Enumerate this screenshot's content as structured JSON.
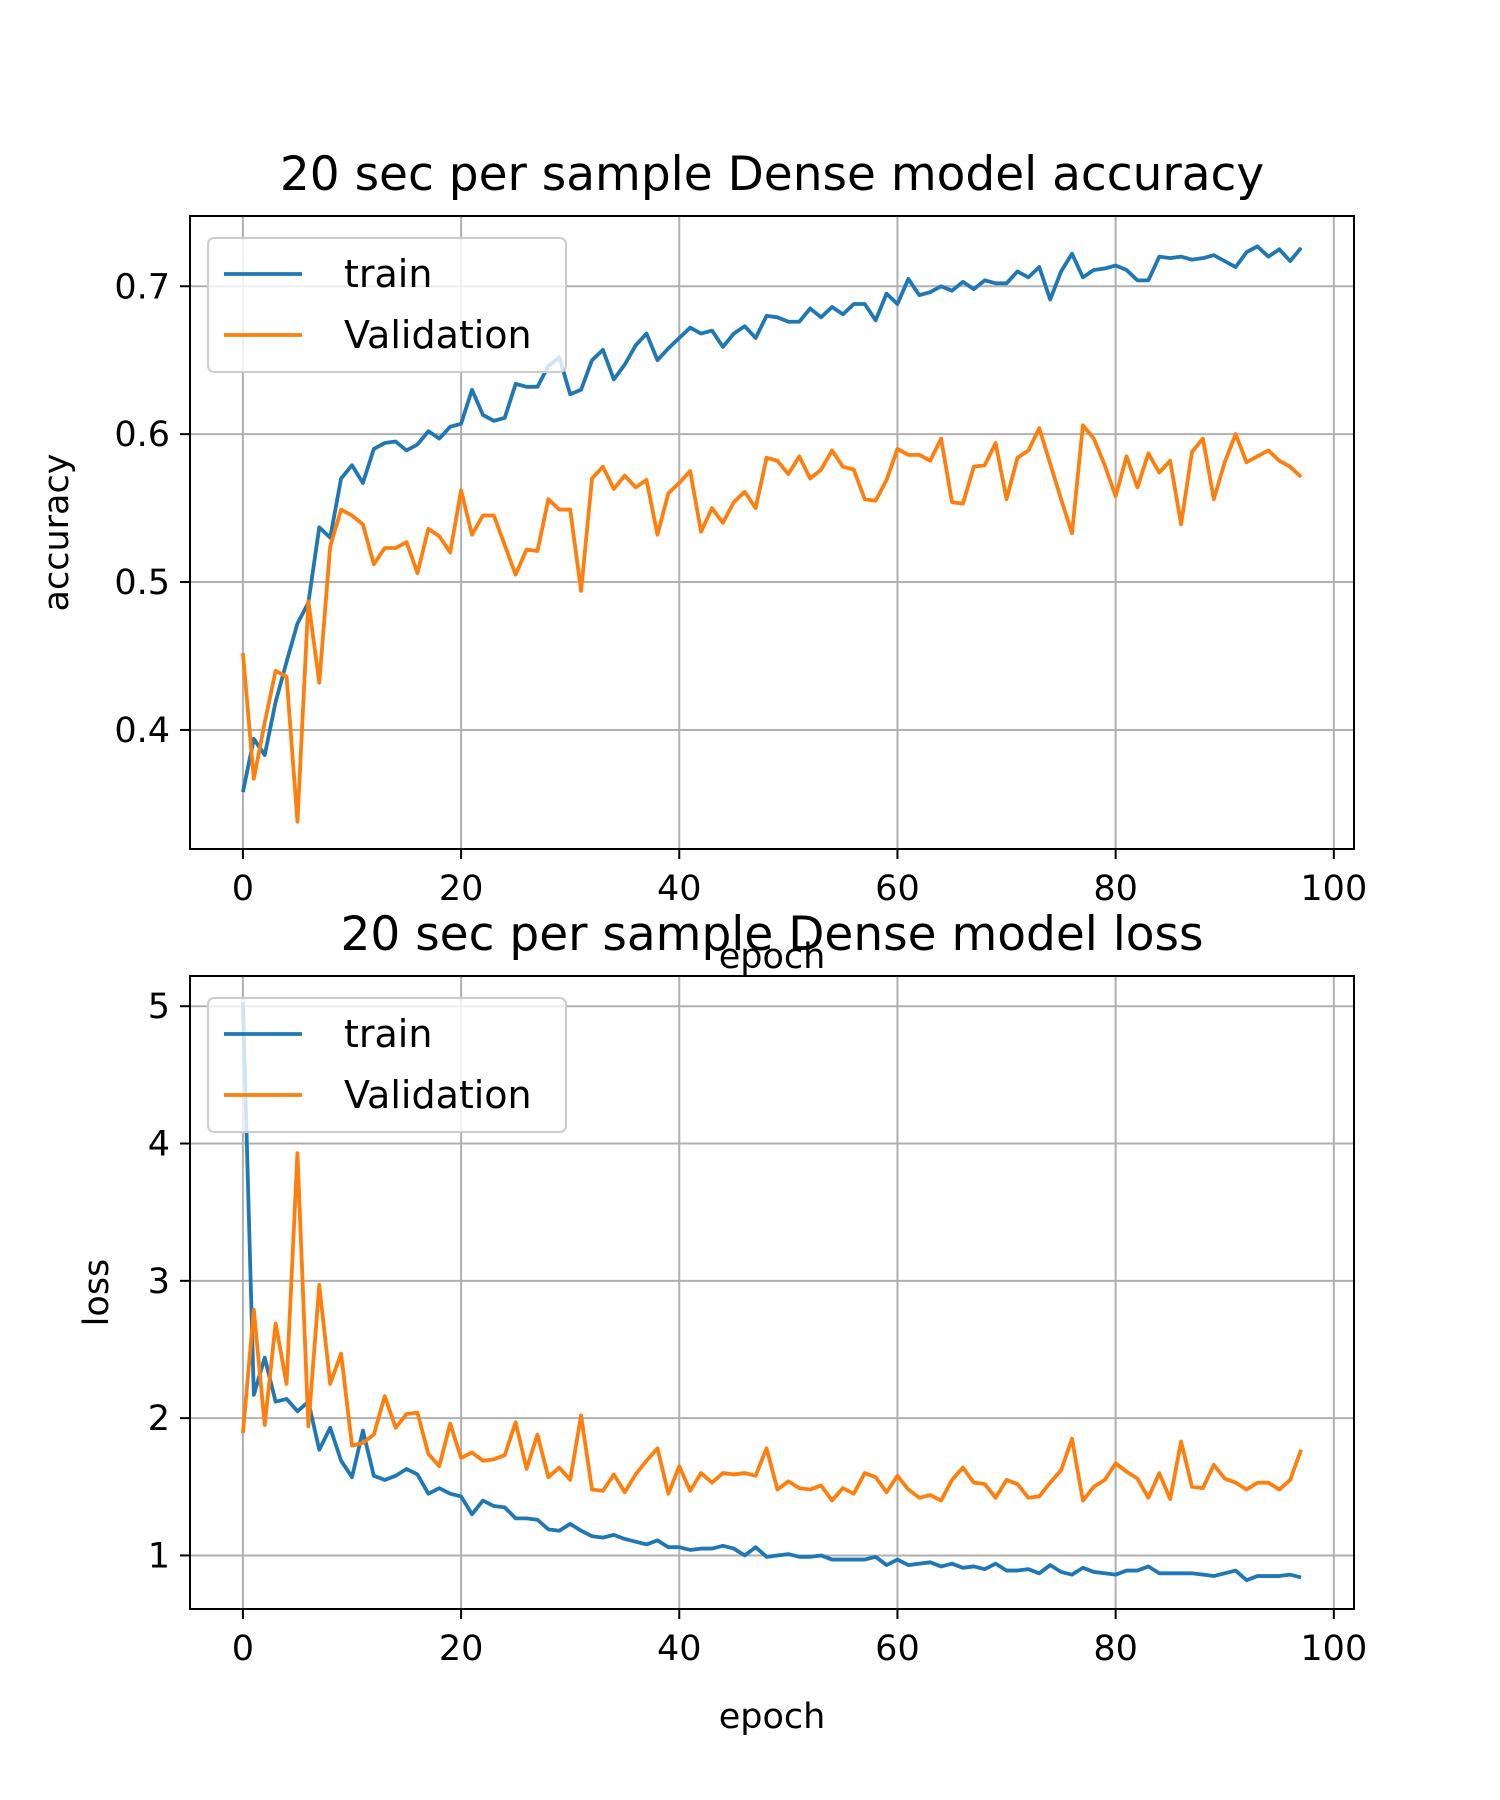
{
  "chart_data": [
    {
      "type": "line",
      "title": "20 sec per sample Dense model accuracy",
      "xlabel": "epoch",
      "ylabel": "accuracy",
      "xlim": [
        -4.85,
        101.85
      ],
      "ylim": [
        0.3195,
        0.7475
      ],
      "xticks": [
        0,
        20,
        40,
        60,
        80,
        100
      ],
      "xtick_labels": [
        "0",
        "20",
        "40",
        "60",
        "80",
        "100"
      ],
      "yticks": [
        0.4,
        0.5,
        0.6,
        0.7
      ],
      "ytick_labels": [
        "0.4",
        "0.5",
        "0.6",
        "0.7"
      ],
      "grid": true,
      "legend_position": "upper-left",
      "series": [
        {
          "name": "train",
          "color": "#1f77b4",
          "values": [
            0.358,
            0.394,
            0.383,
            0.419,
            0.446,
            0.472,
            0.486,
            0.537,
            0.53,
            0.57,
            0.579,
            0.567,
            0.59,
            0.594,
            0.595,
            0.589,
            0.593,
            0.602,
            0.597,
            0.605,
            0.607,
            0.63,
            0.613,
            0.609,
            0.611,
            0.634,
            0.632,
            0.632,
            0.646,
            0.652,
            0.627,
            0.63,
            0.65,
            0.657,
            0.637,
            0.647,
            0.66,
            0.668,
            0.65,
            0.658,
            0.665,
            0.672,
            0.668,
            0.67,
            0.659,
            0.668,
            0.673,
            0.665,
            0.68,
            0.679,
            0.676,
            0.676,
            0.685,
            0.679,
            0.686,
            0.681,
            0.688,
            0.688,
            0.677,
            0.695,
            0.688,
            0.705,
            0.694,
            0.696,
            0.7,
            0.697,
            0.703,
            0.698,
            0.704,
            0.702,
            0.702,
            0.71,
            0.706,
            0.713,
            0.691,
            0.71,
            0.722,
            0.706,
            0.711,
            0.712,
            0.714,
            0.711,
            0.704,
            0.704,
            0.72,
            0.719,
            0.72,
            0.718,
            0.719,
            0.721,
            0.717,
            0.713,
            0.723,
            0.727,
            0.72,
            0.725,
            0.717,
            0.726
          ]
        },
        {
          "name": "Validation",
          "color": "#ff7f0e",
          "values": [
            0.452,
            0.367,
            0.405,
            0.44,
            0.436,
            0.338,
            0.487,
            0.432,
            0.524,
            0.549,
            0.545,
            0.539,
            0.512,
            0.523,
            0.523,
            0.527,
            0.506,
            0.536,
            0.531,
            0.52,
            0.562,
            0.532,
            0.545,
            0.545,
            0.525,
            0.505,
            0.522,
            0.521,
            0.556,
            0.549,
            0.549,
            0.494,
            0.57,
            0.578,
            0.563,
            0.572,
            0.564,
            0.569,
            0.532,
            0.56,
            0.567,
            0.575,
            0.534,
            0.55,
            0.54,
            0.554,
            0.561,
            0.55,
            0.584,
            0.582,
            0.573,
            0.585,
            0.57,
            0.576,
            0.589,
            0.578,
            0.576,
            0.556,
            0.555,
            0.569,
            0.59,
            0.586,
            0.586,
            0.582,
            0.597,
            0.554,
            0.553,
            0.578,
            0.579,
            0.594,
            0.556,
            0.584,
            0.589,
            0.604,
            0.58,
            0.556,
            0.533,
            0.606,
            0.597,
            0.579,
            0.558,
            0.585,
            0.564,
            0.587,
            0.574,
            0.582,
            0.539,
            0.588,
            0.597,
            0.556,
            0.581,
            0.6,
            0.581,
            0.585,
            0.589,
            0.582,
            0.578,
            0.571
          ]
        }
      ]
    },
    {
      "type": "line",
      "title": "20 sec per sample Dense model loss",
      "xlabel": "epoch",
      "ylabel": "loss",
      "xlim": [
        -4.85,
        101.85
      ],
      "ylim": [
        0.61,
        5.22
      ],
      "xticks": [
        0,
        20,
        40,
        60,
        80,
        100
      ],
      "xtick_labels": [
        "0",
        "20",
        "40",
        "60",
        "80",
        "100"
      ],
      "yticks": [
        1,
        2,
        3,
        4,
        5
      ],
      "ytick_labels": [
        "1",
        "2",
        "3",
        "4",
        "5"
      ],
      "grid": true,
      "legend_position": "upper-left",
      "series": [
        {
          "name": "train",
          "color": "#1f77b4",
          "values": [
            5.03,
            2.17,
            2.44,
            2.12,
            2.14,
            2.05,
            2.12,
            1.77,
            1.93,
            1.69,
            1.57,
            1.91,
            1.58,
            1.55,
            1.58,
            1.63,
            1.59,
            1.45,
            1.49,
            1.45,
            1.43,
            1.3,
            1.4,
            1.36,
            1.35,
            1.27,
            1.27,
            1.26,
            1.19,
            1.18,
            1.23,
            1.18,
            1.14,
            1.13,
            1.15,
            1.12,
            1.1,
            1.08,
            1.11,
            1.06,
            1.06,
            1.04,
            1.05,
            1.05,
            1.07,
            1.05,
            1.0,
            1.06,
            0.99,
            1.0,
            1.01,
            0.99,
            0.99,
            1.0,
            0.97,
            0.97,
            0.97,
            0.97,
            0.99,
            0.93,
            0.97,
            0.93,
            0.94,
            0.95,
            0.92,
            0.94,
            0.91,
            0.92,
            0.9,
            0.94,
            0.89,
            0.89,
            0.9,
            0.87,
            0.93,
            0.88,
            0.86,
            0.91,
            0.88,
            0.87,
            0.86,
            0.89,
            0.89,
            0.92,
            0.87,
            0.87,
            0.87,
            0.87,
            0.86,
            0.85,
            0.87,
            0.89,
            0.82,
            0.85,
            0.85,
            0.85,
            0.86,
            0.84
          ]
        },
        {
          "name": "Validation",
          "color": "#ff7f0e",
          "values": [
            1.89,
            2.79,
            1.95,
            2.69,
            2.25,
            3.93,
            1.94,
            2.97,
            2.25,
            2.47,
            1.8,
            1.82,
            1.88,
            2.16,
            1.93,
            2.03,
            2.04,
            1.74,
            1.65,
            1.96,
            1.71,
            1.75,
            1.69,
            1.7,
            1.73,
            1.97,
            1.63,
            1.88,
            1.57,
            1.64,
            1.55,
            2.02,
            1.48,
            1.47,
            1.59,
            1.46,
            1.59,
            1.69,
            1.78,
            1.45,
            1.65,
            1.47,
            1.6,
            1.53,
            1.6,
            1.59,
            1.6,
            1.58,
            1.78,
            1.48,
            1.54,
            1.49,
            1.48,
            1.51,
            1.4,
            1.49,
            1.45,
            1.6,
            1.57,
            1.46,
            1.58,
            1.48,
            1.42,
            1.44,
            1.4,
            1.55,
            1.64,
            1.53,
            1.52,
            1.42,
            1.55,
            1.52,
            1.42,
            1.43,
            1.53,
            1.62,
            1.85,
            1.4,
            1.5,
            1.55,
            1.67,
            1.61,
            1.56,
            1.42,
            1.6,
            1.41,
            1.83,
            1.5,
            1.49,
            1.66,
            1.56,
            1.53,
            1.48,
            1.53,
            1.53,
            1.48,
            1.55,
            1.77
          ]
        }
      ]
    }
  ]
}
